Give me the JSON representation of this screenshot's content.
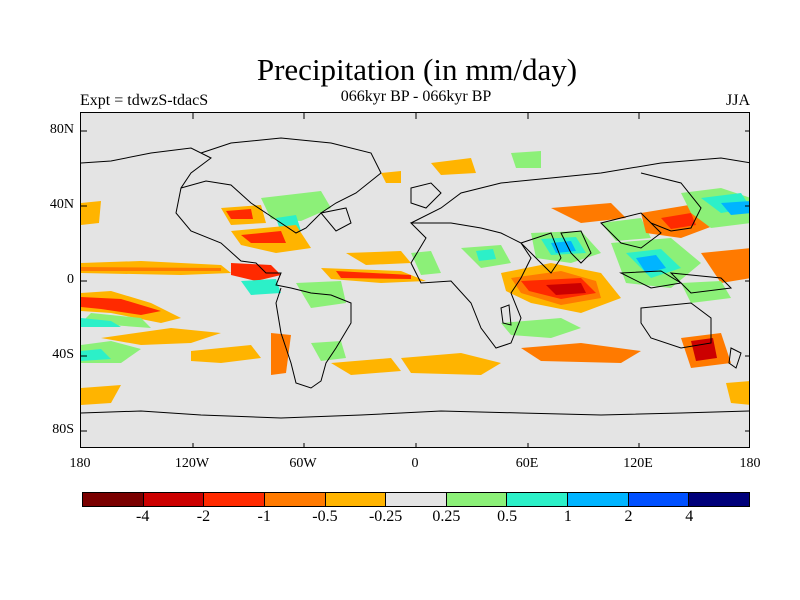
{
  "header": {
    "title": "Precipitation (in mm/day)",
    "left_subtitle": "Expt = tdwzS-tdacS",
    "center_subtitle": "066kyr BP - 066kyr BP",
    "season": "JJA"
  },
  "map": {
    "ocean_color": "#e4e4e4",
    "y_ticks": [
      "80N",
      "40N",
      "0",
      "40S",
      "80S"
    ],
    "x_ticks": [
      "180",
      "120W",
      "60W",
      "0",
      "60E",
      "120E",
      "180"
    ]
  },
  "colorbar": {
    "colors": [
      "#7a0000",
      "#cc0000",
      "#ff2a00",
      "#ff7a00",
      "#ffb400",
      "#e4e4e4",
      "#8cf078",
      "#2cf0c8",
      "#00b4ff",
      "#0050ff",
      "#00007a"
    ],
    "labels": [
      "-4",
      "-2",
      "-1",
      "-0.5",
      "-0.25",
      "0.25",
      "0.5",
      "1",
      "2",
      "4"
    ]
  }
}
